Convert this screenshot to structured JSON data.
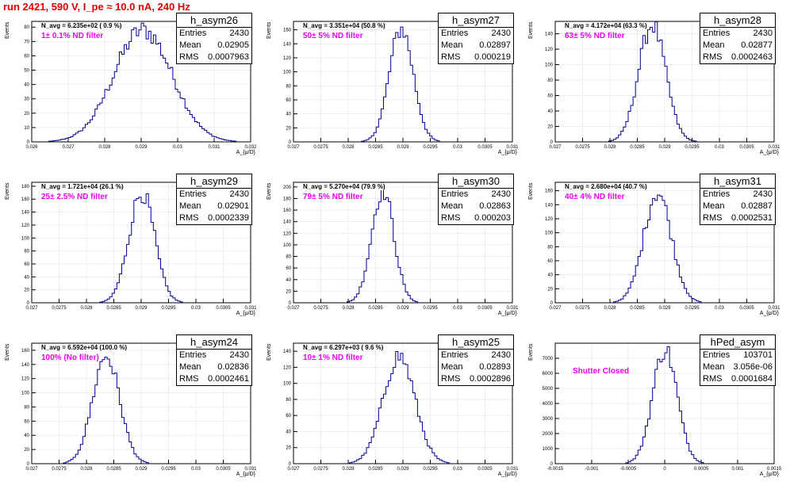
{
  "header": {
    "title": "run 2421,   590 V, I_pe ≈ 10.0 nA, 240 Hz"
  },
  "axis": {
    "ylabel": "Events",
    "xlabel": "A_{μ/D}"
  },
  "colors": {
    "histogram": "#000090",
    "grid": "#c8c8c8",
    "title": "#e00000",
    "filter_label": "#ee00ee"
  },
  "chart_data": [
    {
      "type": "histogram",
      "title": "h_asym26",
      "entries": "2430",
      "mean": "0.02905",
      "rms": "0.0007963",
      "navg": "N_avg = 6.235e+02 ( 0.9 %)",
      "filter": "1± 0.1% ND filter",
      "mu": 0.02905,
      "sigma": 0.0007963,
      "peak": 78,
      "xlim": [
        0.026,
        0.032
      ],
      "xticks": [
        "0.026",
        "0.027",
        "0.028",
        "0.029",
        "0.03",
        "0.031",
        "0.032"
      ],
      "ylim": [
        0,
        84
      ],
      "yticks": [
        0,
        10,
        20,
        30,
        40,
        50,
        60,
        70,
        80
      ]
    },
    {
      "type": "histogram",
      "title": "h_asym27",
      "entries": "2430",
      "mean": "0.02897",
      "rms": "0.000219",
      "navg": "N_avg = 3.351e+04 (50.8 %)",
      "filter": "50± 5% ND filter",
      "mu": 0.02897,
      "sigma": 0.000219,
      "peak": 162,
      "xlim": [
        0.027,
        0.031
      ],
      "xticks": [
        "0.027",
        "0.0275",
        "0.028",
        "0.0285",
        "0.029",
        "0.0295",
        "0.03",
        "0.0305",
        "0.031"
      ],
      "ylim": [
        0,
        172
      ],
      "yticks": [
        0,
        20,
        40,
        60,
        80,
        100,
        120,
        140,
        160
      ]
    },
    {
      "type": "histogram",
      "title": "h_asym28",
      "entries": "2430",
      "mean": "0.02877",
      "rms": "0.0002463",
      "navg": "N_avg = 4.172e+04 (63.3 %)",
      "filter": "63± 5% ND filter",
      "mu": 0.02877,
      "sigma": 0.0002463,
      "peak": 152,
      "xlim": [
        0.027,
        0.031
      ],
      "xticks": [
        "0.027",
        "0.0275",
        "0.028",
        "0.0285",
        "0.029",
        "0.0295",
        "0.03",
        "0.0305",
        "0.031"
      ],
      "ylim": [
        0,
        156
      ],
      "yticks": [
        0,
        20,
        40,
        60,
        80,
        100,
        120,
        140
      ]
    },
    {
      "type": "histogram",
      "title": "h_asym29",
      "entries": "2430",
      "mean": "0.02901",
      "rms": "0.0002339",
      "navg": "N_avg = 1.721e+04 (26.1 %)",
      "filter": "25± 2.5% ND filter",
      "mu": 0.02901,
      "sigma": 0.0002339,
      "peak": 170,
      "xlim": [
        0.027,
        0.031
      ],
      "xticks": [
        "0.027",
        "0.0275",
        "0.028",
        "0.0285",
        "0.029",
        "0.0295",
        "0.03",
        "0.0305",
        "0.031"
      ],
      "ylim": [
        0,
        186
      ],
      "yticks": [
        0,
        20,
        40,
        60,
        80,
        100,
        120,
        140,
        160,
        180
      ]
    },
    {
      "type": "histogram",
      "title": "h_asym30",
      "entries": "2430",
      "mean": "0.02863",
      "rms": "0.000203",
      "navg": "N_avg = 5.270e+04 (79.9 %)",
      "filter": "79± 5% ND filter",
      "mu": 0.02863,
      "sigma": 0.000203,
      "peak": 196,
      "xlim": [
        0.027,
        0.031
      ],
      "xticks": [
        "0.027",
        "0.0275",
        "0.028",
        "0.0285",
        "0.029",
        "0.0295",
        "0.03",
        "0.0305",
        "0.031"
      ],
      "ylim": [
        0,
        208
      ],
      "yticks": [
        0,
        20,
        40,
        60,
        80,
        100,
        120,
        140,
        160,
        180,
        200
      ]
    },
    {
      "type": "histogram",
      "title": "h_asym31",
      "entries": "2430",
      "mean": "0.02887",
      "rms": "0.0002531",
      "navg": "N_avg = 2.680e+04 (40.7 %)",
      "filter": "40± 4% ND filter",
      "mu": 0.02887,
      "sigma": 0.0002531,
      "peak": 158,
      "xlim": [
        0.027,
        0.031
      ],
      "xticks": [
        "0.027",
        "0.0275",
        "0.028",
        "0.0285",
        "0.029",
        "0.0295",
        "0.03",
        "0.0305",
        "0.031"
      ],
      "ylim": [
        0,
        172
      ],
      "yticks": [
        0,
        20,
        40,
        60,
        80,
        100,
        120,
        140,
        160
      ]
    },
    {
      "type": "histogram",
      "title": "h_asym24",
      "entries": "2430",
      "mean": "0.02836",
      "rms": "0.0002461",
      "navg": "N_avg = 6.592e+04 (100.0 %)",
      "filter": "100% (No filter)",
      "mu": 0.02836,
      "sigma": 0.0002461,
      "peak": 152,
      "xlim": [
        0.027,
        0.031
      ],
      "xticks": [
        "0.027",
        "0.0275",
        "0.028",
        "0.0285",
        "0.029",
        "0.0295",
        "0.03",
        "0.0305",
        "0.031"
      ],
      "ylim": [
        0,
        170
      ],
      "yticks": [
        0,
        20,
        40,
        60,
        80,
        100,
        120,
        140,
        160
      ]
    },
    {
      "type": "histogram",
      "title": "h_asym25",
      "entries": "2430",
      "mean": "0.02893",
      "rms": "0.0002896",
      "navg": "N_avg = 6.297e+03 ( 9.6 %)",
      "filter": "10± 1% ND filter",
      "mu": 0.02893,
      "sigma": 0.0002896,
      "peak": 134,
      "xlim": [
        0.027,
        0.031
      ],
      "xticks": [
        "0.027",
        "0.0275",
        "0.028",
        "0.0285",
        "0.029",
        "0.0295",
        "0.03",
        "0.0305",
        "0.031"
      ],
      "ylim": [
        0,
        150
      ],
      "yticks": [
        0,
        20,
        40,
        60,
        80,
        100,
        120,
        140
      ]
    },
    {
      "type": "histogram",
      "title": "hPed_asym",
      "entries": "103701",
      "mean": "3.056e-06",
      "rms": "0.0001684",
      "navg": "",
      "filter": "Shutter Closed",
      "mu": 3.056e-06,
      "sigma": 0.0001684,
      "peak": 7600,
      "xlim": [
        -0.0015,
        0.0015
      ],
      "xticks": [
        "-0.0015",
        "-0.001",
        "-0.0005",
        "0",
        "0.0005",
        "0.001",
        "0.0015"
      ],
      "ylim": [
        0,
        8000
      ],
      "yticks": [
        0,
        1000,
        2000,
        3000,
        4000,
        5000,
        6000,
        7000
      ]
    }
  ]
}
